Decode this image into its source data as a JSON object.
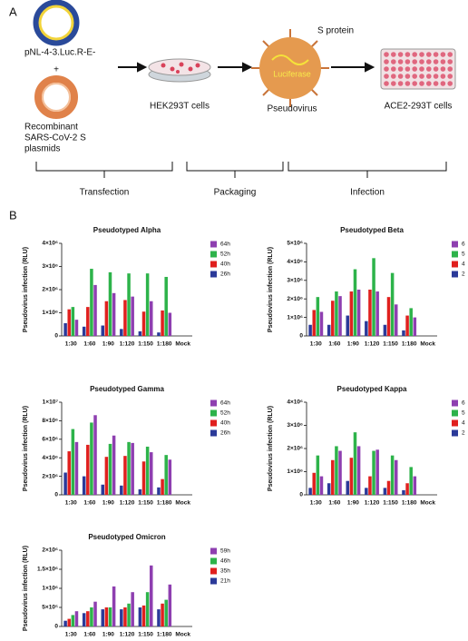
{
  "panel_labels": [
    "A",
    "B"
  ],
  "diagram": {
    "plasmid_1": "pNL-4-3.Luc.R-E-",
    "plus": "+",
    "plasmid_2": [
      "Recombinant",
      "SARS-CoV-2 S",
      "plasmids"
    ],
    "cells_1": "HEK293T cells",
    "spike": "S protein",
    "reporter": "Luciferase",
    "virus": "Pseudovirus",
    "cells_2": "ACE2-293T cells",
    "steps": [
      "Transfection",
      "Packaging",
      "Infection"
    ]
  },
  "chart_data": [
    {
      "type": "bar",
      "title": "Pseudotyped Alpha",
      "y_label": "Pseudovirus infection (RLU)",
      "categories": [
        "1:30",
        "1:60",
        "1:90",
        "1:120",
        "1:150",
        "1:180",
        "Mock"
      ],
      "ylim": [
        0,
        4000000
      ],
      "yticks": [
        0,
        {
          "value": 1000000,
          "label": "1×10⁶"
        },
        {
          "value": 2000000,
          "label": "2×10⁶"
        },
        {
          "value": 3000000,
          "label": "3×10⁶"
        },
        {
          "value": 4000000,
          "label": "4×10⁶"
        }
      ],
      "series": [
        {
          "name": "64h",
          "color": "#8e3fb0",
          "values": [
            700000,
            2200000,
            1850000,
            1700000,
            1500000,
            1000000,
            0
          ]
        },
        {
          "name": "52h",
          "color": "#2db34a",
          "values": [
            1250000,
            2900000,
            2750000,
            2700000,
            2700000,
            2550000,
            0
          ]
        },
        {
          "name": "40h",
          "color": "#e0201e",
          "values": [
            1150000,
            1250000,
            1500000,
            1550000,
            1050000,
            1100000,
            0
          ]
        },
        {
          "name": "26h",
          "color": "#2b3a99",
          "values": [
            550000,
            400000,
            450000,
            300000,
            200000,
            150000,
            0
          ]
        }
      ]
    },
    {
      "type": "bar",
      "title": "Pseudotyped Beta",
      "y_label": "Pseudovirus infection (RLU)",
      "categories": [
        "1:30",
        "1:60",
        "1:90",
        "1:120",
        "1:150",
        "1:180",
        "Mock"
      ],
      "ylim": [
        0,
        5000000
      ],
      "yticks": [
        0,
        {
          "value": 1000000,
          "label": "1×10⁶"
        },
        {
          "value": 2000000,
          "label": "2×10⁶"
        },
        {
          "value": 3000000,
          "label": "3×10⁶"
        },
        {
          "value": 4000000,
          "label": "4×10⁶"
        },
        {
          "value": 5000000,
          "label": "5×10⁶"
        }
      ],
      "series": [
        {
          "name": "6",
          "color": "#8e3fb0",
          "values": [
            1300000,
            2150000,
            2500000,
            2400000,
            1700000,
            1000000,
            0
          ]
        },
        {
          "name": "5",
          "color": "#2db34a",
          "values": [
            2100000,
            2400000,
            3600000,
            4200000,
            3400000,
            1500000,
            0
          ]
        },
        {
          "name": "4",
          "color": "#e0201e",
          "values": [
            1400000,
            1900000,
            2400000,
            2500000,
            2100000,
            1100000,
            0
          ]
        },
        {
          "name": "2",
          "color": "#2b3a99",
          "values": [
            600000,
            600000,
            1100000,
            800000,
            600000,
            300000,
            0
          ]
        }
      ]
    },
    {
      "type": "bar",
      "title": "Pseudotyped Gamma",
      "y_label": "Pseudovirus infection (RLU)",
      "categories": [
        "1:30",
        "1:60",
        "1:90",
        "1:120",
        "1:150",
        "1:180",
        "Mock"
      ],
      "ylim": [
        0,
        10000000
      ],
      "yticks": [
        0,
        {
          "value": 2000000,
          "label": "2×10⁶"
        },
        {
          "value": 4000000,
          "label": "4×10⁶"
        },
        {
          "value": 6000000,
          "label": "6×10⁶"
        },
        {
          "value": 8000000,
          "label": "8×10⁶"
        },
        {
          "value": 10000000,
          "label": "1×10⁷"
        }
      ],
      "series": [
        {
          "name": "64h",
          "color": "#8e3fb0",
          "values": [
            5700000,
            8600000,
            6400000,
            5600000,
            4600000,
            3800000,
            0
          ]
        },
        {
          "name": "52h",
          "color": "#2db34a",
          "values": [
            7100000,
            7800000,
            5500000,
            5700000,
            5200000,
            4300000,
            0
          ]
        },
        {
          "name": "40h",
          "color": "#e0201e",
          "values": [
            4700000,
            5400000,
            4100000,
            4200000,
            3600000,
            1700000,
            0
          ]
        },
        {
          "name": "26h",
          "color": "#2b3a99",
          "values": [
            2400000,
            2000000,
            1100000,
            1000000,
            600000,
            800000,
            0
          ]
        }
      ]
    },
    {
      "type": "bar",
      "title": "Pseudotyped Kappa",
      "y_label": "Pseudovirus infection (RLU)",
      "categories": [
        "1:30",
        "1:60",
        "1:90",
        "1:120",
        "1:150",
        "1:180",
        "Mock"
      ],
      "ylim": [
        0,
        4000000
      ],
      "yticks": [
        0,
        {
          "value": 1000000,
          "label": "1×10⁶"
        },
        {
          "value": 2000000,
          "label": "2×10⁶"
        },
        {
          "value": 3000000,
          "label": "3×10⁶"
        },
        {
          "value": 4000000,
          "label": "4×10⁶"
        }
      ],
      "series": [
        {
          "name": "6",
          "color": "#8e3fb0",
          "values": [
            800000,
            1900000,
            2100000,
            1950000,
            1500000,
            800000,
            0
          ]
        },
        {
          "name": "5",
          "color": "#2db34a",
          "values": [
            1700000,
            2100000,
            2700000,
            1900000,
            1700000,
            1200000,
            0
          ]
        },
        {
          "name": "4",
          "color": "#e0201e",
          "values": [
            950000,
            1500000,
            1600000,
            800000,
            600000,
            500000,
            0
          ]
        },
        {
          "name": "2",
          "color": "#2b3a99",
          "values": [
            300000,
            500000,
            600000,
            300000,
            300000,
            200000,
            0
          ]
        }
      ]
    },
    {
      "type": "bar",
      "title": "Pseudotyped Omicron",
      "y_label": "Pseudovirus infection (RLU)",
      "categories": [
        "1:30",
        "1:60",
        "1:90",
        "1:120",
        "1:150",
        "1:180",
        "Mock"
      ],
      "ylim": [
        0,
        2000000
      ],
      "yticks": [
        0,
        {
          "value": 500000,
          "label": "5×10⁵"
        },
        {
          "value": 1000000,
          "label": "1×10⁶"
        },
        {
          "value": 1500000,
          "label": "1.5×10⁶"
        },
        {
          "value": 2000000,
          "label": "2×10⁶"
        }
      ],
      "series": [
        {
          "name": "59h",
          "color": "#8e3fb0",
          "values": [
            400000,
            650000,
            1050000,
            900000,
            1600000,
            1100000,
            0
          ]
        },
        {
          "name": "46h",
          "color": "#2db34a",
          "values": [
            300000,
            500000,
            500000,
            600000,
            900000,
            700000,
            0
          ]
        },
        {
          "name": "35h",
          "color": "#e0201e",
          "values": [
            200000,
            400000,
            500000,
            500000,
            550000,
            600000,
            0
          ]
        },
        {
          "name": "21h",
          "color": "#2b3a99",
          "values": [
            150000,
            350000,
            450000,
            450000,
            500000,
            450000,
            0
          ]
        }
      ]
    }
  ]
}
